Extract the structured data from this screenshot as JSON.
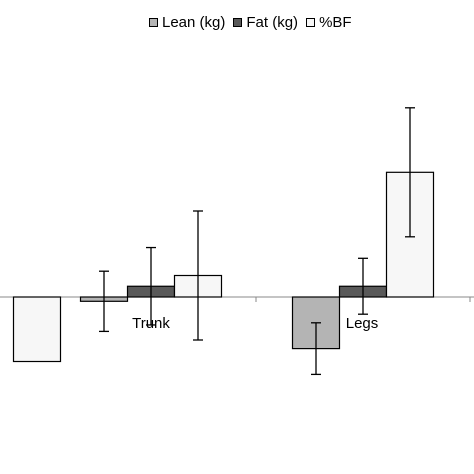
{
  "chart_data": {
    "type": "bar",
    "title": "",
    "xlabel": "",
    "ylabel": "",
    "categories": [
      "",
      "Trunk",
      "Legs"
    ],
    "series": [
      {
        "name": "Lean (kg)",
        "color": "#b4b4b4",
        "values": [
          null,
          -0.1,
          -1.2
        ],
        "errors": [
          null,
          0.7,
          0.6
        ]
      },
      {
        "name": "Fat (kg)",
        "color": "#595959",
        "values": [
          null,
          0.25,
          0.25
        ],
        "errors": [
          null,
          0.9,
          0.65
        ]
      },
      {
        "name": "%BF",
        "color": "#f7f7f7",
        "values": [
          -1.5,
          0.5,
          2.9
        ],
        "errors": [
          null,
          1.5,
          1.5
        ]
      }
    ],
    "ylim": [
      -4,
      7
    ],
    "grid": false,
    "legend": "top"
  }
}
